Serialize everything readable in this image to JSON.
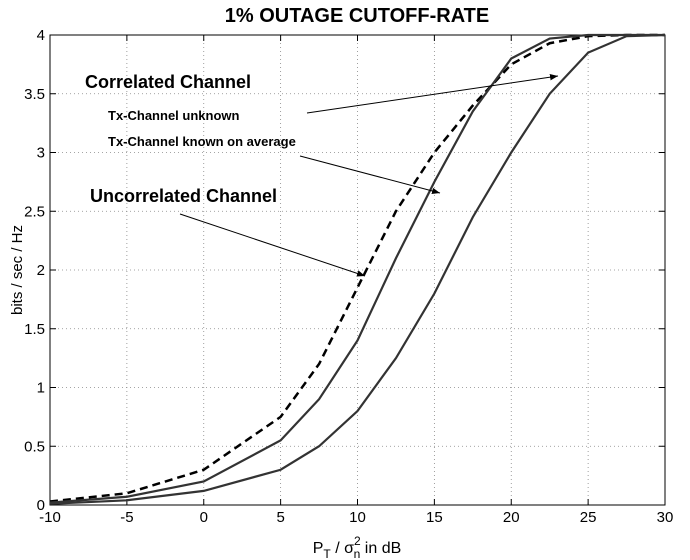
{
  "chart_data": {
    "type": "line",
    "title": "1% OUTAGE CUTOFF-RATE",
    "ylabel": "bits / sec / Hz",
    "xlabel": {
      "base": "P",
      "sub": "T",
      "mid": " / σ",
      "sup": "2",
      "sub2": "n",
      "end": " in dB"
    },
    "x": [
      -10,
      -5,
      0,
      5,
      7.5,
      10,
      12.5,
      15,
      17.5,
      20,
      22.5,
      25,
      27.5,
      30
    ],
    "series": [
      {
        "color": "#000000",
        "dashed": true,
        "values": [
          0.03,
          0.1,
          0.3,
          0.75,
          1.2,
          1.85,
          2.5,
          3.0,
          3.4,
          3.75,
          3.93,
          3.99,
          4,
          4
        ]
      },
      {
        "color": "#333333",
        "dashed": false,
        "values": [
          0.02,
          0.07,
          0.2,
          0.55,
          0.9,
          1.4,
          2.1,
          2.75,
          3.35,
          3.8,
          3.97,
          4,
          4,
          4
        ]
      },
      {
        "color": "#333333",
        "dashed": false,
        "values": [
          0.01,
          0.04,
          0.12,
          0.3,
          0.5,
          0.8,
          1.25,
          1.8,
          2.45,
          3.0,
          3.5,
          3.85,
          3.99,
          4
        ]
      }
    ],
    "annotations": [
      "Correlated Channel",
      "Tx-Channel unknown",
      "Tx-Channel known on average",
      "Uncorrelated Channel"
    ],
    "xlim": [
      -10,
      30
    ],
    "xticks": [
      -10,
      -5,
      0,
      5,
      10,
      15,
      20,
      25,
      30
    ],
    "ylim": [
      0,
      4
    ],
    "yticks": [
      0,
      0.5,
      1,
      1.5,
      2,
      2.5,
      3,
      3.5,
      4
    ],
    "grid": true
  }
}
